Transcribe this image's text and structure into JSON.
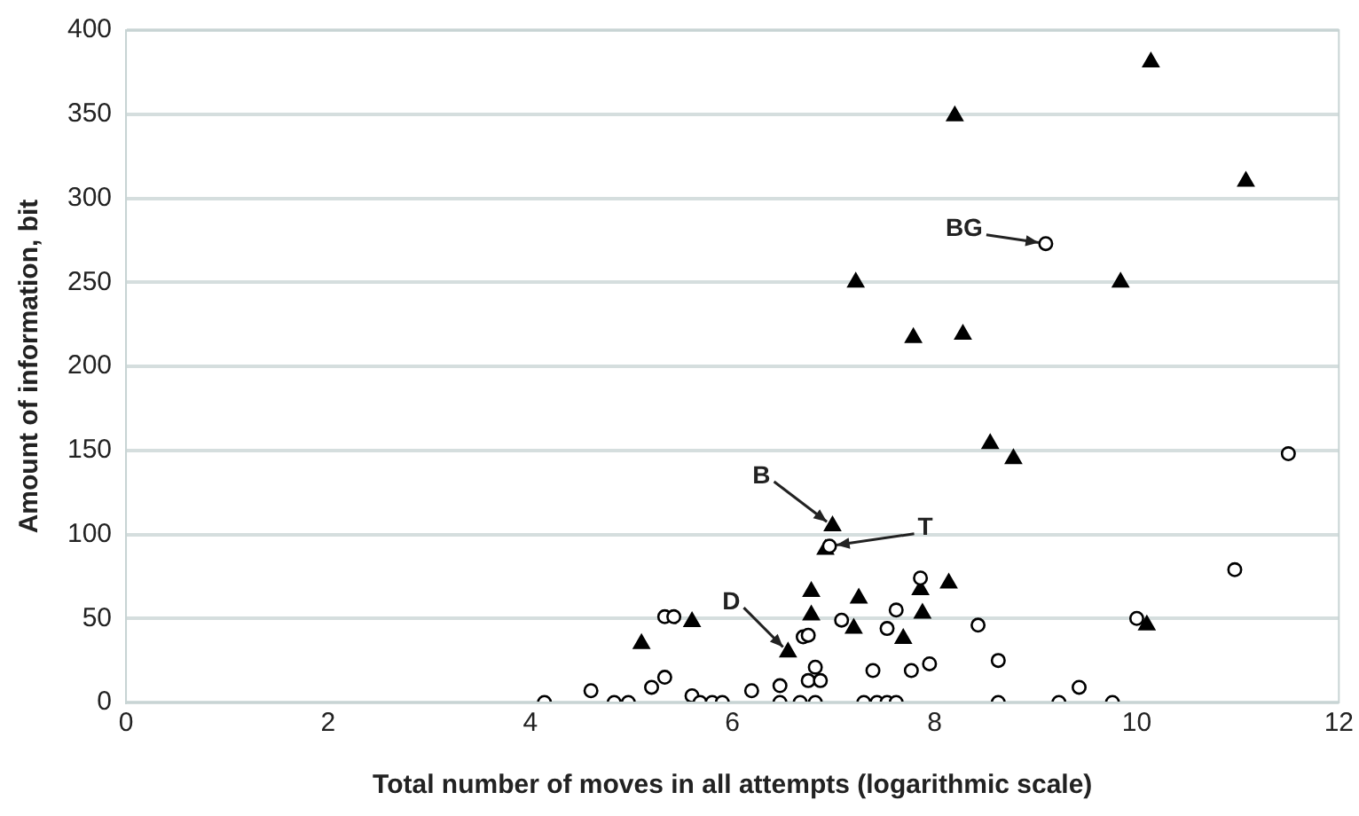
{
  "chart_data": {
    "type": "scatter",
    "xlabel": "Total number of moves in all attempts (logarithmic scale)",
    "ylabel": "Amount of information, bit",
    "xlim": [
      0,
      12
    ],
    "xticks": [
      0,
      2,
      4,
      6,
      8,
      10,
      12
    ],
    "ylim": [
      0,
      400
    ],
    "yticks": [
      0,
      50,
      100,
      150,
      200,
      250,
      300,
      350,
      400
    ],
    "grid": "y",
    "legend": false,
    "series": [
      {
        "marker": "triangle",
        "color": "#000000",
        "x": [
          5.1,
          5.6,
          6.55,
          6.78,
          6.78,
          7.25,
          7.2,
          7.86,
          8.14,
          7.88,
          7.69,
          10.1,
          7.22,
          9.84,
          7.79,
          8.28,
          8.55,
          8.78,
          6.99,
          6.92,
          10.14,
          8.2,
          11.08
        ],
        "values": [
          35,
          48,
          30,
          66,
          52,
          62,
          44,
          67,
          71,
          53,
          38,
          46,
          250,
          250,
          217,
          219,
          154,
          145,
          105,
          91,
          381,
          349,
          310
        ]
      },
      {
        "marker": "circle",
        "color": "#000000",
        "x": [
          4.14,
          4.6,
          4.83,
          4.97,
          5.2,
          5.33,
          5.33,
          5.42,
          5.6,
          5.68,
          5.8,
          5.9,
          6.19,
          6.47,
          6.47,
          6.67,
          6.82,
          6.82,
          6.75,
          6.87,
          6.7,
          6.75,
          7.08,
          7.3,
          7.43,
          7.53,
          7.62,
          7.39,
          7.53,
          7.62,
          7.77,
          7.95,
          7.86,
          8.43,
          8.63,
          8.63,
          9.23,
          9.43,
          9.76,
          10.0,
          10.97,
          9.1,
          11.5,
          6.96
        ],
        "values": [
          0,
          7,
          0,
          0,
          9,
          15,
          51,
          51,
          4,
          0,
          0,
          0,
          7,
          10,
          0,
          0,
          0,
          21,
          13,
          13,
          39,
          40,
          49,
          0,
          0,
          0,
          0,
          19,
          44,
          55,
          19,
          23,
          74,
          46,
          25,
          0,
          0,
          9,
          0,
          50,
          79,
          273,
          148,
          93
        ]
      }
    ],
    "annotations": [
      {
        "text": "B",
        "x": 6.99,
        "y": 105
      },
      {
        "text": "T",
        "x": 6.96,
        "y": 93
      },
      {
        "text": "D",
        "x": 6.55,
        "y": 30
      },
      {
        "text": "BG",
        "x": 9.1,
        "y": 273
      }
    ]
  }
}
